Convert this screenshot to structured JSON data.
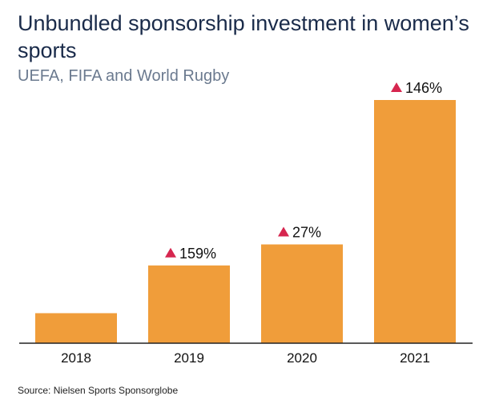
{
  "title": "Unbundled sponsorship investment in women’s sports",
  "subtitle": "UEFA, FIFA and World Rugby",
  "source": "Source: Nielsen Sports Sponsorglobe",
  "colors": {
    "bar": "#F09D3A",
    "marker": "#D6264F",
    "axis": "#222222"
  },
  "chart_data": {
    "type": "bar",
    "categories": [
      "2018",
      "2019",
      "2020",
      "2021"
    ],
    "values": [
      1.0,
      2.59,
      3.29,
      8.1
    ],
    "data_labels": [
      "",
      "159%",
      "27%",
      "146%"
    ],
    "ylim": [
      0,
      8.1
    ],
    "grid": false,
    "legend": "none"
  }
}
